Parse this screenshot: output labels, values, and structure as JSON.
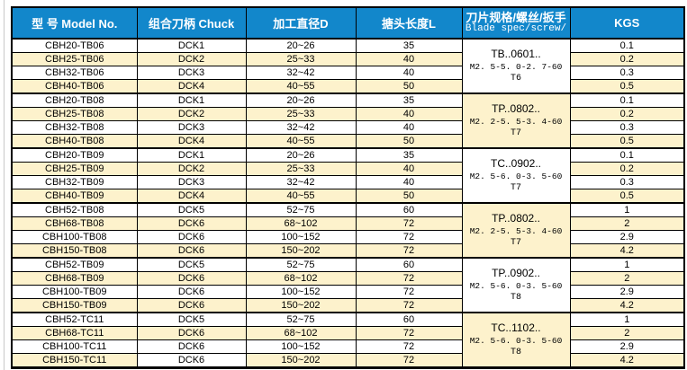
{
  "colors": {
    "header_bg": "#1287cb",
    "header_text": "#ffffff",
    "row_bg": "#ffffff",
    "row_alt_bg": "#fdf2cc",
    "border": "#000000"
  },
  "table": {
    "columns": [
      {
        "id": "model",
        "label": "型 号 Model No."
      },
      {
        "id": "chuck",
        "label": "组合刀柄 Chuck"
      },
      {
        "id": "diameter",
        "label": "加工直径D"
      },
      {
        "id": "length",
        "label": "搪头长度L"
      },
      {
        "id": "blade",
        "label": "刀片规格/螺丝/扳手",
        "sublabel": "Blade spec/screw/"
      },
      {
        "id": "kgs",
        "label": "KGS"
      }
    ],
    "groups": [
      {
        "blade_spec": {
          "line1": "TB..0601..",
          "line2": "M2. 5-5. 0-2. 7-60",
          "line3": "T6"
        },
        "rows": [
          {
            "model": "CBH20-TB06",
            "chuck": "DCK1",
            "diameter": "20~26",
            "length": "35",
            "kgs": "0.1"
          },
          {
            "model": "CBH25-TB06",
            "chuck": "DCK2",
            "diameter": "25~33",
            "length": "40",
            "kgs": "0.2"
          },
          {
            "model": "CBH32-TB06",
            "chuck": "DCK3",
            "diameter": "32~42",
            "length": "40",
            "kgs": "0.3"
          },
          {
            "model": "CBH40-TB06",
            "chuck": "DCK4",
            "diameter": "40~55",
            "length": "50",
            "kgs": "0.5"
          }
        ]
      },
      {
        "blade_spec": {
          "line1": "TP..0802..",
          "line2": "M2. 2-5. 5-3. 4-60",
          "line3": "T7"
        },
        "rows": [
          {
            "model": "CBH20-TB08",
            "chuck": "DCK1",
            "diameter": "20~26",
            "length": "35",
            "kgs": "0.1"
          },
          {
            "model": "CBH25-TB08",
            "chuck": "DCK2",
            "diameter": "25~33",
            "length": "40",
            "kgs": "0.2"
          },
          {
            "model": "CBH32-TB08",
            "chuck": "DCK3",
            "diameter": "32~42",
            "length": "40",
            "kgs": "0.3"
          },
          {
            "model": "CBH40-TB08",
            "chuck": "DCK4",
            "diameter": "40~55",
            "length": "50",
            "kgs": "0.5"
          }
        ]
      },
      {
        "blade_spec": {
          "line1": "TC..0902..",
          "line2": "M2. 5-6. 0-3. 5-60",
          "line3": "T7"
        },
        "rows": [
          {
            "model": "CBH20-TB09",
            "chuck": "DCK1",
            "diameter": "20~26",
            "length": "35",
            "kgs": "0.1"
          },
          {
            "model": "CBH25-TB09",
            "chuck": "DCK2",
            "diameter": "25~33",
            "length": "40",
            "kgs": "0.2"
          },
          {
            "model": "CBH32-TB09",
            "chuck": "DCK3",
            "diameter": "32~42",
            "length": "40",
            "kgs": "0.3"
          },
          {
            "model": "CBH40-TB09",
            "chuck": "DCK4",
            "diameter": "40~55",
            "length": "50",
            "kgs": "0.5"
          }
        ]
      },
      {
        "blade_spec": {
          "line1": "TP..0802..",
          "line2": "M2. 2-5. 5-3. 4-60",
          "line3": "T7"
        },
        "rows": [
          {
            "model": "CBH52-TB08",
            "chuck": "DCK5",
            "diameter": "52~75",
            "length": "60",
            "kgs": "1"
          },
          {
            "model": "CBH68-TB08",
            "chuck": "DCK6",
            "diameter": "68~102",
            "length": "72",
            "kgs": "2"
          },
          {
            "model": "CBH100-TB08",
            "chuck": "DCK6",
            "diameter": "100~152",
            "length": "72",
            "kgs": "2.9"
          },
          {
            "model": "CBH150-TB08",
            "chuck": "DCK6",
            "diameter": "150~202",
            "length": "72",
            "kgs": "4.2"
          }
        ]
      },
      {
        "blade_spec": {
          "line1": "TP..0902..",
          "line2": "M2. 5-6. 0-3. 5-60",
          "line3": "T8"
        },
        "rows": [
          {
            "model": "CBH52-TB09",
            "chuck": "DCK5",
            "diameter": "52~75",
            "length": "60",
            "kgs": "1"
          },
          {
            "model": "CBH68-TB09",
            "chuck": "DCK6",
            "diameter": "68~102",
            "length": "72",
            "kgs": "2"
          },
          {
            "model": "CBH100-TB09",
            "chuck": "DCK6",
            "diameter": "100~152",
            "length": "72",
            "kgs": "2.9"
          },
          {
            "model": "CBH150-TB09",
            "chuck": "DCK6",
            "diameter": "150~202",
            "length": "72",
            "kgs": "4.2"
          }
        ]
      },
      {
        "blade_spec": {
          "line1": "TC..1102..",
          "line2": "M2. 5-6. 0-3. 5-60",
          "line3": "T8"
        },
        "rows": [
          {
            "model": "CBH52-TC11",
            "chuck": "DCK5",
            "diameter": "52~75",
            "length": "60",
            "kgs": "1"
          },
          {
            "model": "CBH68-TC11",
            "chuck": "DCK6",
            "diameter": "68~102",
            "length": "72",
            "kgs": "2"
          },
          {
            "model": "CBH100-TC11",
            "chuck": "DCK6",
            "diameter": "100~152",
            "length": "72",
            "kgs": "2.9"
          },
          {
            "model": "CBH150-TC11",
            "chuck": "DCK6",
            "diameter": "150~202",
            "length": "72",
            "kgs": "4.2"
          }
        ]
      }
    ]
  }
}
